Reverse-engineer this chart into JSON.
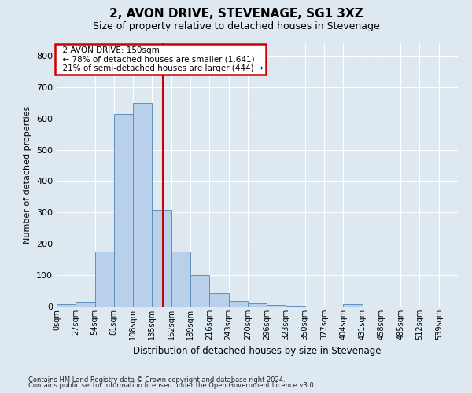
{
  "title": "2, AVON DRIVE, STEVENAGE, SG1 3XZ",
  "subtitle": "Size of property relative to detached houses in Stevenage",
  "xlabel": "Distribution of detached houses by size in Stevenage",
  "ylabel": "Number of detached properties",
  "footnote1": "Contains HM Land Registry data © Crown copyright and database right 2024.",
  "footnote2": "Contains public sector information licensed under the Open Government Licence v3.0.",
  "bin_labels": [
    "0sqm",
    "27sqm",
    "54sqm",
    "81sqm",
    "108sqm",
    "135sqm",
    "162sqm",
    "189sqm",
    "216sqm",
    "243sqm",
    "270sqm",
    "296sqm",
    "323sqm",
    "350sqm",
    "377sqm",
    "404sqm",
    "431sqm",
    "458sqm",
    "485sqm",
    "512sqm",
    "539sqm"
  ],
  "bar_values": [
    8,
    15,
    175,
    615,
    650,
    308,
    175,
    100,
    42,
    17,
    10,
    6,
    2,
    0,
    0,
    8,
    0,
    0,
    0,
    0,
    0
  ],
  "bar_color": "#b8d0ea",
  "bar_edge_color": "#6090c0",
  "annotation_title": "2 AVON DRIVE: 150sqm",
  "annotation_line1": "← 78% of detached houses are smaller (1,641)",
  "annotation_line2": "21% of semi-detached houses are larger (444) →",
  "annotation_box_color": "#ffffff",
  "annotation_box_edge": "#cc0000",
  "vline_color": "#cc0000",
  "ylim": [
    0,
    840
  ],
  "yticks": [
    0,
    100,
    200,
    300,
    400,
    500,
    600,
    700,
    800
  ],
  "background_color": "#dde8f0",
  "plot_bg_color": "#dde8f0",
  "grid_color": "#ffffff",
  "bin_width": 27,
  "property_size": 150
}
